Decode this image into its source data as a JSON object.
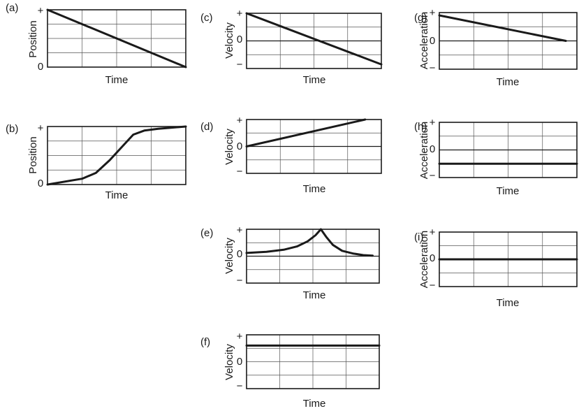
{
  "chart_data": [
    {
      "id": "a",
      "type": "line",
      "panel_label": "(a)",
      "ylabel": "Position",
      "xlabel": "Time",
      "yticks": [
        "+",
        "0"
      ],
      "ylim": [
        0,
        1
      ],
      "zero_line": false,
      "grid": true,
      "series": [
        {
          "x": [
            0,
            1
          ],
          "y": [
            1,
            0
          ]
        }
      ]
    },
    {
      "id": "b",
      "type": "line",
      "panel_label": "(b)",
      "ylabel": "Position",
      "xlabel": "Time",
      "yticks": [
        "+",
        "0"
      ],
      "ylim": [
        0,
        1
      ],
      "zero_line": false,
      "grid": true,
      "series": [
        {
          "x": [
            0,
            0.25,
            0.35,
            0.45,
            0.55,
            0.62,
            0.7,
            0.8,
            1
          ],
          "y": [
            0,
            0.1,
            0.2,
            0.42,
            0.68,
            0.86,
            0.93,
            0.96,
            1
          ]
        }
      ]
    },
    {
      "id": "c",
      "type": "line",
      "panel_label": "(c)",
      "ylabel": "Velocity",
      "xlabel": "Time",
      "yticks": [
        "+",
        "0",
        "−"
      ],
      "ylim": [
        -1,
        1
      ],
      "zero_line": true,
      "grid": true,
      "series": [
        {
          "x": [
            0,
            1
          ],
          "y": [
            1,
            -0.85
          ]
        }
      ]
    },
    {
      "id": "d",
      "type": "line",
      "panel_label": "(d)",
      "ylabel": "Velocity",
      "xlabel": "Time",
      "yticks": [
        "+",
        "0",
        "−"
      ],
      "ylim": [
        -1,
        1
      ],
      "zero_line": true,
      "grid": true,
      "series": [
        {
          "x": [
            0,
            0.88
          ],
          "y": [
            0,
            1
          ]
        }
      ]
    },
    {
      "id": "e",
      "type": "line",
      "panel_label": "(e)",
      "ylabel": "Velocity",
      "xlabel": "Time",
      "yticks": [
        "+",
        "0",
        "−"
      ],
      "ylim": [
        -1,
        1
      ],
      "zero_line": true,
      "grid": true,
      "series": [
        {
          "x": [
            0,
            0.15,
            0.28,
            0.38,
            0.46,
            0.52,
            0.56,
            0.6,
            0.65,
            0.72,
            0.8,
            0.88,
            0.95
          ],
          "y": [
            0.12,
            0.16,
            0.24,
            0.36,
            0.55,
            0.78,
            1.0,
            0.72,
            0.42,
            0.2,
            0.1,
            0.04,
            0.02
          ]
        }
      ]
    },
    {
      "id": "f",
      "type": "line",
      "panel_label": "(f)",
      "ylabel": "Velocity",
      "xlabel": "Time",
      "yticks": [
        "+",
        "0",
        "−"
      ],
      "ylim": [
        -1,
        1
      ],
      "zero_line": false,
      "grid": true,
      "series": [
        {
          "x": [
            0,
            1
          ],
          "y": [
            0.6,
            0.6
          ]
        }
      ]
    },
    {
      "id": "g",
      "type": "line",
      "panel_label": "(g)",
      "ylabel": "Acceleration",
      "xlabel": "Time",
      "yticks": [
        "+",
        "0",
        "−"
      ],
      "ylim": [
        -1,
        1
      ],
      "zero_line": true,
      "grid": true,
      "series": [
        {
          "x": [
            0,
            0.92
          ],
          "y": [
            0.9,
            0
          ]
        }
      ]
    },
    {
      "id": "h",
      "type": "line",
      "panel_label": "(h)",
      "ylabel": "Acceleration",
      "xlabel": "Time",
      "yticks": [
        "+",
        "0",
        "−"
      ],
      "ylim": [
        -1,
        1
      ],
      "zero_line": true,
      "grid": true,
      "series": [
        {
          "x": [
            0,
            1
          ],
          "y": [
            -0.5,
            -0.5
          ]
        }
      ]
    },
    {
      "id": "i",
      "type": "line",
      "panel_label": "(i)",
      "ylabel": "Acceleration",
      "xlabel": "Time",
      "yticks": [
        "+",
        "0",
        "−"
      ],
      "ylim": [
        -1,
        1
      ],
      "zero_line": false,
      "grid": true,
      "series": [
        {
          "x": [
            0,
            1
          ],
          "y": [
            0,
            0
          ]
        }
      ]
    }
  ]
}
